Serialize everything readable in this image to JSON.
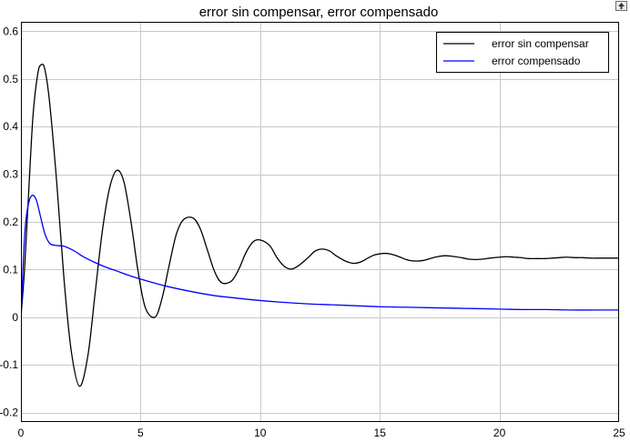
{
  "chart_data": {
    "type": "line",
    "title": "error sin compensar, error compensado",
    "xlabel": "",
    "ylabel": "",
    "xlim": [
      0,
      25
    ],
    "ylim": [
      -0.22,
      0.62
    ],
    "grid": true,
    "legend_position": "top-right",
    "x_ticks": [
      0,
      5,
      10,
      15,
      20,
      25
    ],
    "x_tick_labels": [
      "0",
      "5",
      "10",
      "15",
      "20",
      "25"
    ],
    "y_ticks": [
      -0.2,
      -0.1,
      0,
      0.1,
      0.2,
      0.3,
      0.4,
      0.5,
      0.6
    ],
    "y_tick_labels": [
      "-0.2",
      "-0.1",
      "0",
      "0.1",
      "0.2",
      "0.3",
      "0.4",
      "0.5",
      "0.6"
    ],
    "series": [
      {
        "name": "error sin compensar",
        "color": "#000000",
        "x": [
          0,
          0.15,
          0.3,
          0.5,
          0.7,
          0.85,
          1.0,
          1.2,
          1.5,
          1.8,
          2.1,
          2.45,
          2.8,
          3.1,
          3.4,
          3.7,
          4.0,
          4.3,
          4.6,
          4.9,
          5.2,
          5.6,
          5.9,
          6.2,
          6.5,
          6.8,
          7.2,
          7.5,
          7.8,
          8.1,
          8.4,
          8.8,
          9.1,
          9.4,
          9.7,
          10.0,
          10.4,
          10.7,
          11.0,
          11.3,
          11.6,
          12.0,
          12.3,
          12.6,
          12.9,
          13.2,
          13.6,
          13.9,
          14.2,
          14.5,
          14.8,
          15.2,
          15.5,
          15.8,
          16.1,
          16.4,
          16.8,
          17.1,
          17.4,
          17.7,
          18.0,
          18.4,
          18.7,
          19.0,
          19.3,
          19.6,
          20.0,
          20.3,
          20.6,
          20.9,
          21.2,
          21.6,
          21.9,
          22.2,
          22.5,
          22.8,
          23.2,
          23.5,
          23.8,
          24.1,
          24.4,
          24.7,
          25.0
        ],
        "values": [
          0,
          0.1,
          0.24,
          0.42,
          0.51,
          0.53,
          0.52,
          0.45,
          0.28,
          0.08,
          -0.07,
          -0.145,
          -0.08,
          0.05,
          0.18,
          0.27,
          0.308,
          0.285,
          0.2,
          0.095,
          0.02,
          0.0,
          0.04,
          0.11,
          0.175,
          0.205,
          0.208,
          0.185,
          0.14,
          0.095,
          0.072,
          0.076,
          0.1,
          0.135,
          0.158,
          0.162,
          0.15,
          0.125,
          0.107,
          0.101,
          0.108,
          0.125,
          0.139,
          0.143,
          0.139,
          0.128,
          0.117,
          0.113,
          0.116,
          0.124,
          0.131,
          0.134,
          0.132,
          0.127,
          0.121,
          0.118,
          0.119,
          0.123,
          0.127,
          0.129,
          0.128,
          0.125,
          0.122,
          0.121,
          0.122,
          0.124,
          0.126,
          0.127,
          0.126,
          0.125,
          0.123,
          0.123,
          0.123,
          0.124,
          0.125,
          0.126,
          0.125,
          0.125,
          0.124,
          0.124,
          0.124,
          0.124,
          0.124
        ]
      },
      {
        "name": "error compensado",
        "color": "#0000ff",
        "x": [
          0,
          0.1,
          0.2,
          0.35,
          0.5,
          0.65,
          0.8,
          1.0,
          1.2,
          1.4,
          1.6,
          1.8,
          2.0,
          2.3,
          2.6,
          3.0,
          3.5,
          4.0,
          4.5,
          5.0,
          6.0,
          7.0,
          8.0,
          9.0,
          10.0,
          11.0,
          12.0,
          13.0,
          14.0,
          15.0,
          16.0,
          17.0,
          18.0,
          19.0,
          20.0,
          21.0,
          22.0,
          23.0,
          24.0,
          25.0
        ],
        "values": [
          0,
          0.12,
          0.2,
          0.245,
          0.256,
          0.245,
          0.215,
          0.175,
          0.155,
          0.151,
          0.15,
          0.149,
          0.145,
          0.137,
          0.127,
          0.117,
          0.106,
          0.097,
          0.088,
          0.08,
          0.066,
          0.055,
          0.046,
          0.04,
          0.035,
          0.031,
          0.028,
          0.026,
          0.024,
          0.022,
          0.021,
          0.02,
          0.019,
          0.018,
          0.017,
          0.016,
          0.016,
          0.015,
          0.015,
          0.015
        ]
      }
    ]
  },
  "toolbar": {
    "restore_icon": "restore-axes-icon"
  }
}
